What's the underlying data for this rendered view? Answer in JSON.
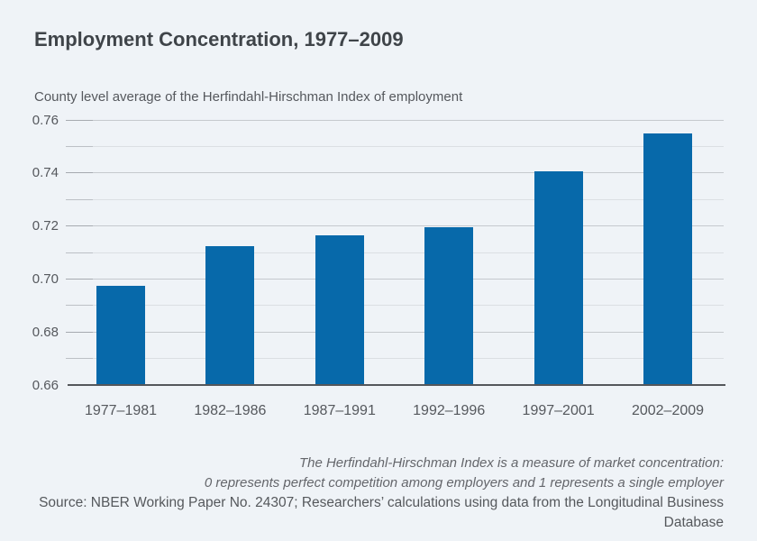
{
  "chart": {
    "title": "Employment Concentration, 1977–2009",
    "subtitle": "County level average of the Herfindahl-Hirschman Index of employment"
  },
  "footer": {
    "note_line1": "The Herfindahl-Hirschman Index is a measure of market concentration:",
    "note_line2": "0 represents perfect competition among employers and 1 represents a single employer",
    "source": "Source: NBER Working Paper No. 24307; Researchers’ calculations using data from the Longitudinal Business Database"
  },
  "colors": {
    "background": "#eff3f7",
    "bar": "#0769aa",
    "title_text": "#3f4449",
    "axis_text": "#55585d",
    "gridline_major": "#c5c9ce",
    "gridline_minor": "#dbdfe3",
    "axis_line": "#54575b",
    "footer_text": "#64666b"
  },
  "chart_data": {
    "type": "bar",
    "title": "Employment Concentration, 1977–2009",
    "subtitle": "County level average of the Herfindahl-Hirschman Index of employment",
    "categories": [
      "1977–1981",
      "1982–1986",
      "1987–1991",
      "1992–1996",
      "1997–2001",
      "2002–2009"
    ],
    "values": [
      0.6975,
      0.7125,
      0.7165,
      0.7195,
      0.7405,
      0.755
    ],
    "xlabel": "",
    "ylabel": "",
    "ylim": [
      0.66,
      0.76
    ],
    "ytick_step": 0.01,
    "ytick_label_step": 0.02,
    "ytick_labels": [
      "0.76",
      "0.74",
      "0.72",
      "0.70",
      "0.68",
      "0.66"
    ],
    "grid": true,
    "legend": false,
    "bar_color": "#0769aa"
  }
}
